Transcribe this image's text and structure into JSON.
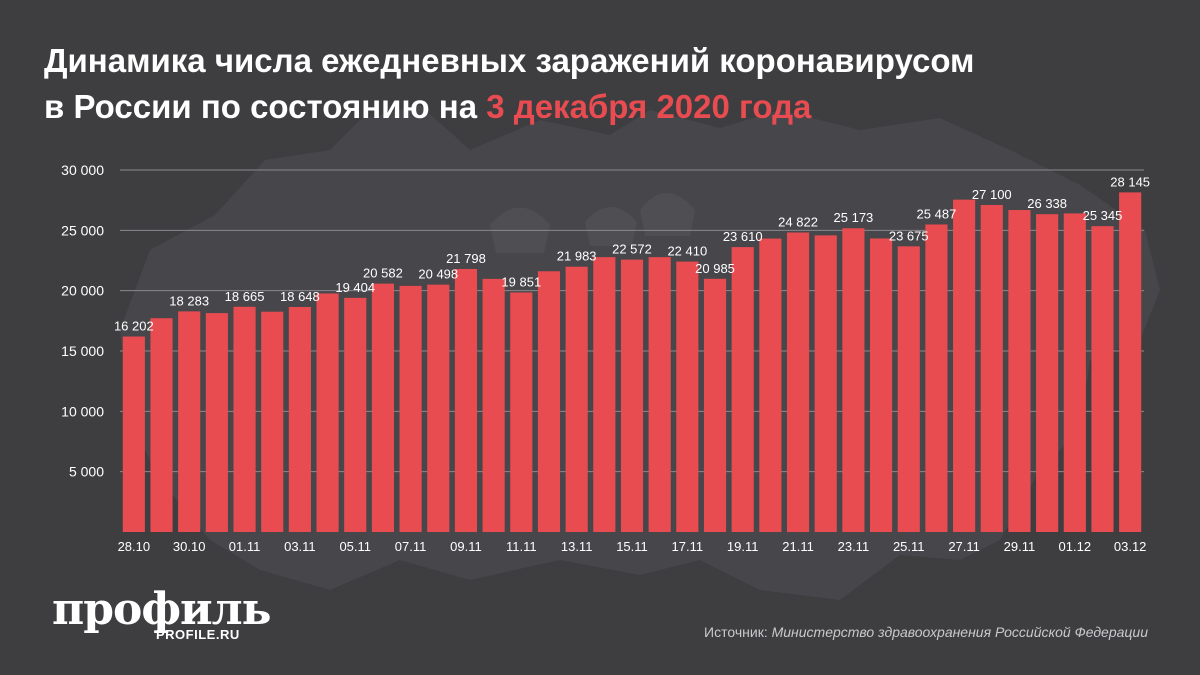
{
  "title": {
    "line1": "Динамика числа ежедневных заражений коронавирусом",
    "line2": "в России по состоянию на ",
    "accent": "3 декабря 2020 года"
  },
  "colors": {
    "background": "#3e3d40",
    "bar": "#e84c51",
    "accent": "#e84c51",
    "text": "#ffffff",
    "grid": "#8a898c"
  },
  "brand": {
    "logo": "профиль",
    "site": "PROFILE.RU"
  },
  "source": {
    "prefix": "Источник: ",
    "name": "Министерство здравоохранения Российской Федерации"
  },
  "chart_data": {
    "type": "bar",
    "title": "",
    "xlabel": "",
    "ylabel": "",
    "ylim": [
      0,
      30000
    ],
    "yticks": [
      5000,
      10000,
      15000,
      20000,
      25000,
      30000
    ],
    "ytick_labels": [
      "5 000",
      "10 000",
      "15 000",
      "20 000",
      "25 000",
      "30 000"
    ],
    "grid": true,
    "categories": [
      "28.10",
      "29.10",
      "30.10",
      "31.10",
      "01.11",
      "02.11",
      "03.11",
      "04.11",
      "05.11",
      "06.11",
      "07.11",
      "08.11",
      "09.11",
      "10.11",
      "11.11",
      "12.11",
      "13.11",
      "14.11",
      "15.11",
      "16.11",
      "17.11",
      "18.11",
      "19.11",
      "20.11",
      "21.11",
      "22.11",
      "23.11",
      "24.11",
      "25.11",
      "26.11",
      "27.11",
      "28.11",
      "29.11",
      "30.11",
      "01.12",
      "02.12",
      "03.12"
    ],
    "xtick_labels": [
      "28.10",
      "",
      "30.10",
      "",
      "01.11",
      "",
      "03.11",
      "",
      "05.11",
      "",
      "07.11",
      "",
      "09.11",
      "",
      "11.11",
      "",
      "13.11",
      "",
      "15.11",
      "",
      "17.11",
      "",
      "19.11",
      "",
      "21.11",
      "",
      "23.11",
      "",
      "25.11",
      "",
      "27.11",
      "",
      "29.11",
      "",
      "01.12",
      "",
      "03.12"
    ],
    "values": [
      16202,
      17717,
      18283,
      18140,
      18665,
      18257,
      18648,
      19768,
      19404,
      20582,
      20396,
      20498,
      21798,
      20977,
      19851,
      21608,
      21983,
      22778,
      22572,
      22778,
      22410,
      20985,
      23610,
      24318,
      24822,
      24581,
      25173,
      24326,
      23675,
      25487,
      27543,
      27100,
      26683,
      26338,
      26402,
      25345,
      28145
    ],
    "data_labels": [
      "16 202",
      "",
      "18 283",
      "",
      "18 665",
      "",
      "18 648",
      "",
      "19 404",
      "20 582",
      "",
      "20 498",
      "21 798",
      "",
      "19 851",
      "",
      "21 983",
      "",
      "22 572",
      "",
      "22 410",
      "20 985",
      "23 610",
      "",
      "24 822",
      "",
      "25 173",
      "",
      "23 675",
      "25 487",
      "",
      "27 100",
      "",
      "26 338",
      "",
      "25 345",
      "28 145"
    ]
  }
}
